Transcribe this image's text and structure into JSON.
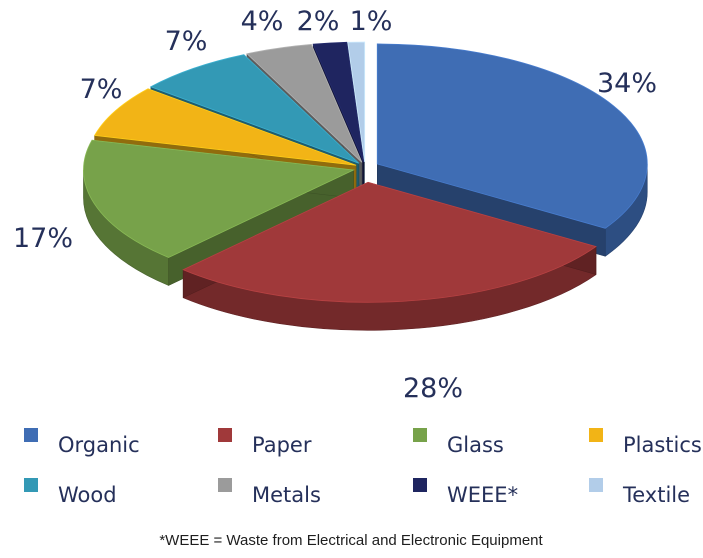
{
  "chart_data": {
    "type": "pie",
    "style": "3d-exploded",
    "categories": [
      "Organic",
      "Paper",
      "Glass",
      "Plastics",
      "Wood",
      "Metals",
      "WEEE*",
      "Textile"
    ],
    "values": [
      34,
      28,
      17,
      7,
      7,
      4,
      2,
      1
    ],
    "data_labels": [
      "34%",
      "28%",
      "17%",
      "7%",
      "7%",
      "4%",
      "2%",
      "1%"
    ],
    "colors": [
      "#3f6db4",
      "#a0393a",
      "#77a24a",
      "#f2b416",
      "#3399b5",
      "#9b9b9b",
      "#1f2560",
      "#b2cde9"
    ],
    "legend_position": "bottom",
    "footnote": "*WEEE = Waste from Electrical and Electronic Equipment"
  }
}
